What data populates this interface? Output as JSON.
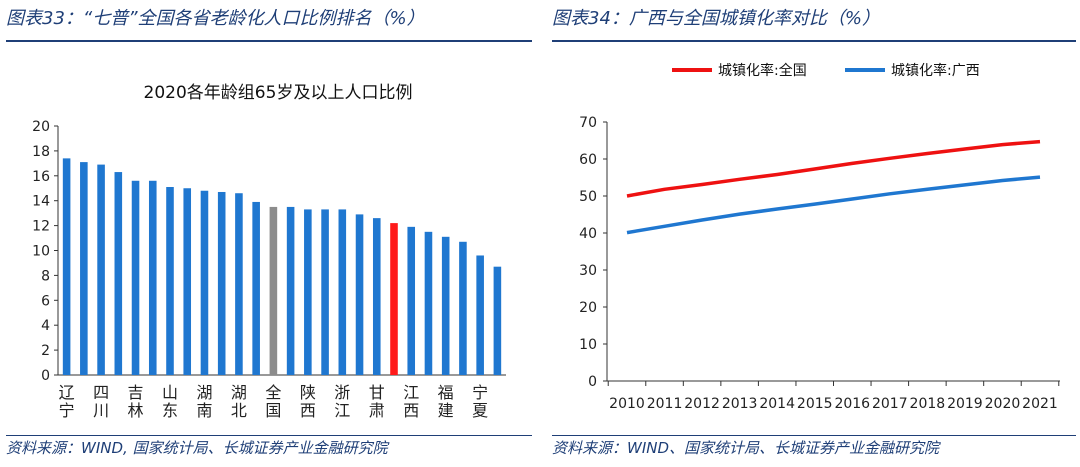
{
  "left": {
    "header": "图表33：“七普”全国各省老龄化人口比例排名（%）",
    "source": "资料来源：WIND, 国家统计局、长城证券产业金融研究院"
  },
  "right": {
    "header": "图表34：广西与全国城镇化率对比（%）",
    "source": "资料来源：WIND、国家统计局、长城证券产业金融研究院"
  },
  "chart_data": [
    {
      "type": "bar",
      "title": "2020各年龄组65岁及以上人口比例",
      "categories": [
        "辽宁",
        "",
        "四川",
        "",
        "吉林",
        "",
        "山东",
        "",
        "湖南",
        "",
        "湖北",
        "",
        "全国",
        "",
        "陕西",
        "",
        "浙江",
        "",
        "甘肃",
        "",
        "江西",
        "",
        "福建",
        "",
        "宁夏",
        ""
      ],
      "values": [
        17.4,
        17.1,
        16.9,
        16.3,
        15.6,
        15.6,
        15.1,
        15.0,
        14.8,
        14.7,
        14.6,
        13.9,
        13.5,
        13.5,
        13.3,
        13.3,
        13.3,
        12.9,
        12.6,
        12.2,
        11.9,
        11.5,
        11.1,
        10.7,
        9.6,
        8.7
      ],
      "highlight": {
        "12": "#8c8c8c",
        "19": "#ff1a1a"
      },
      "bar_color": "#1f77d0",
      "ylim": [
        0,
        20
      ],
      "yticks": [
        0,
        2,
        4,
        6,
        8,
        10,
        12,
        14,
        16,
        18,
        20
      ],
      "xlabel": "",
      "ylabel": ""
    },
    {
      "type": "line",
      "x": [
        2010,
        2011,
        2012,
        2013,
        2014,
        2015,
        2016,
        2017,
        2018,
        2019,
        2020,
        2021
      ],
      "series": [
        {
          "name": "城镇化率:全国",
          "color": "#ee1111",
          "values": [
            50.0,
            51.8,
            53.1,
            54.5,
            55.8,
            57.3,
            58.8,
            60.2,
            61.5,
            62.7,
            63.9,
            64.7
          ]
        },
        {
          "name": "城镇化率:广西",
          "color": "#1f77d0",
          "values": [
            40.1,
            41.8,
            43.5,
            45.1,
            46.5,
            47.8,
            49.2,
            50.6,
            51.8,
            53.0,
            54.2,
            55.1
          ]
        }
      ],
      "ylim": [
        0,
        70
      ],
      "yticks": [
        0,
        10,
        20,
        30,
        40,
        50,
        60,
        70
      ],
      "xlabel": "",
      "ylabel": "",
      "legend": "top"
    }
  ]
}
